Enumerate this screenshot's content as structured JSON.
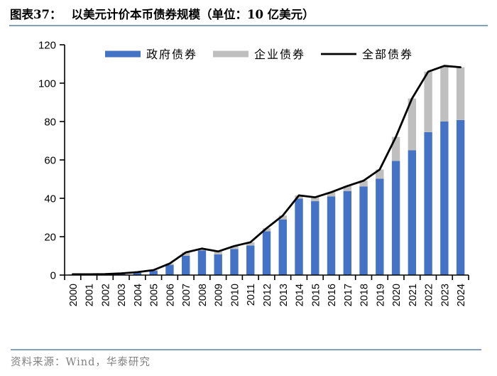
{
  "header": {
    "title_prefix": "图表37：",
    "title_text": "以美元计价本币债券规模（单位：10 亿美元）"
  },
  "footer": {
    "source": "资料来源：Wind，华泰研究"
  },
  "colors": {
    "government_bar": "#4472C4",
    "corporate_bar": "#BFBFBF",
    "total_line": "#000000",
    "rule_blue": "#84A0BC",
    "axis": "#000000",
    "footer_text": "#808080"
  },
  "chart_data": {
    "type": "bar",
    "subtype": "stacked-bars-with-line-overlay",
    "title": "以美元计价本币债券规模（单位：10 亿美元）",
    "xlabel": "",
    "ylabel": "",
    "ylim": [
      0,
      120
    ],
    "yticks": [
      0,
      20,
      40,
      60,
      80,
      100,
      120
    ],
    "grid": false,
    "legend_position": "top-center",
    "categories": [
      "2000",
      "2001",
      "2002",
      "2003",
      "2004",
      "2005",
      "2006",
      "2007",
      "2008",
      "2009",
      "2010",
      "2011",
      "2012",
      "2013",
      "2014",
      "2015",
      "2016",
      "2017",
      "2018",
      "2019",
      "2020",
      "2021",
      "2022",
      "2023",
      "2024"
    ],
    "series": [
      {
        "name": "政府债券",
        "type": "bar",
        "stack": true,
        "color": "#4472C4",
        "values": [
          0.3,
          0.3,
          0.4,
          0.7,
          1.2,
          2.2,
          5.3,
          10.0,
          12.8,
          10.8,
          13.6,
          15.4,
          22.8,
          29.0,
          39.8,
          38.5,
          41.0,
          43.8,
          46.2,
          50.2,
          59.5,
          65.0,
          74.5,
          80.0,
          80.8
        ]
      },
      {
        "name": "企业债券",
        "type": "bar",
        "stack": true,
        "color": "#BFBFBF",
        "values": [
          0.1,
          0.1,
          0.1,
          0.2,
          0.3,
          0.4,
          0.7,
          1.8,
          1.0,
          1.5,
          1.5,
          1.7,
          1.6,
          2.0,
          1.7,
          2.0,
          2.2,
          2.6,
          3.0,
          4.8,
          12.5,
          27.0,
          31.5,
          29.0,
          27.5
        ]
      },
      {
        "name": "全部债券",
        "type": "line",
        "color": "#000000",
        "values": [
          0.4,
          0.4,
          0.5,
          0.9,
          1.5,
          2.6,
          6.0,
          11.8,
          13.8,
          12.3,
          15.1,
          17.1,
          24.4,
          31.0,
          41.5,
          40.5,
          43.2,
          46.4,
          49.2,
          55.0,
          72.0,
          92.0,
          106.0,
          109.0,
          108.3
        ]
      }
    ]
  }
}
